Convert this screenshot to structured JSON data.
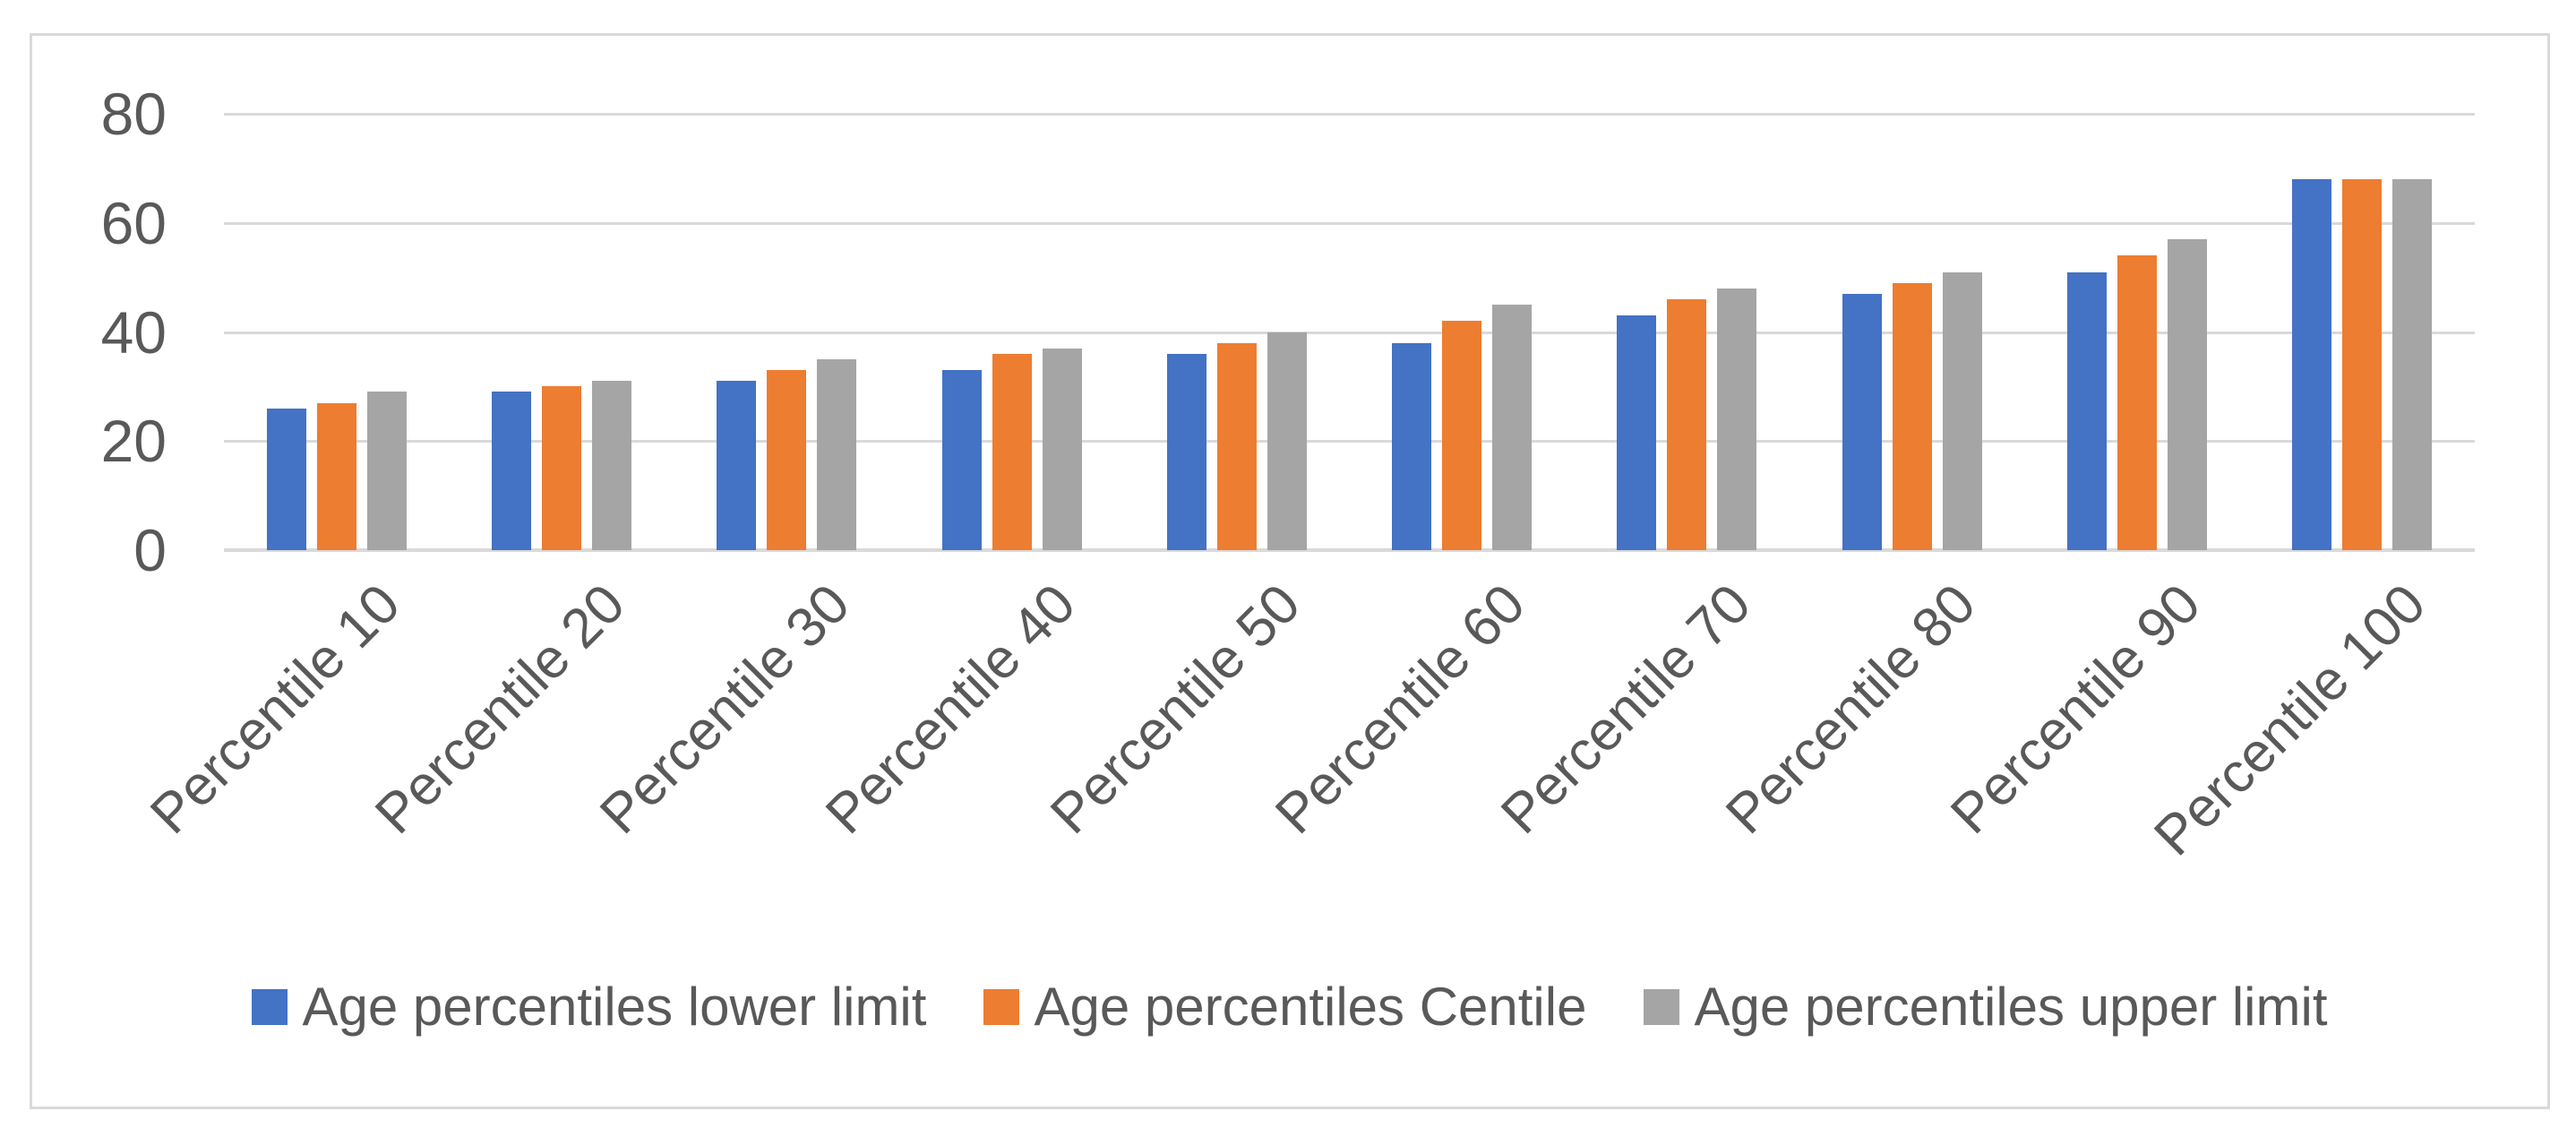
{
  "chart_data": {
    "type": "bar",
    "title": "",
    "xlabel": "",
    "ylabel": "",
    "categories": [
      "Percentile 10",
      "Percentile 20",
      "Percentile 30",
      "Percentile 40",
      "Percentile 50",
      "Percentile 60",
      "Percentile 70",
      "Percentile 80",
      "Percentile 90",
      "Percentile 100"
    ],
    "series": [
      {
        "name": "Age percentiles lower limit",
        "color": "#4472C4",
        "values": [
          26,
          29,
          31,
          33,
          36,
          38,
          43,
          47,
          51,
          68
        ]
      },
      {
        "name": "Age percentiles Centile",
        "color": "#ED7D31",
        "values": [
          27,
          30,
          33,
          36,
          38,
          42,
          46,
          49,
          54,
          68
        ]
      },
      {
        "name": "Age percentiles upper limit",
        "color": "#A5A5A5",
        "values": [
          29,
          31,
          35,
          37,
          40,
          45,
          48,
          51,
          57,
          68
        ]
      }
    ],
    "ylim": [
      0,
      80
    ],
    "yticks": [
      0,
      20,
      40,
      60,
      80
    ],
    "ytick_labels": [
      "0",
      "20",
      "40",
      "60",
      "80"
    ],
    "grid": true,
    "legend_position": "bottom",
    "category_label_rotation_deg": 45
  },
  "colors": {
    "background": "#FFFFFF",
    "frame_border": "#D9D9D9",
    "gridline": "#D9D9D9",
    "axis_line": "#D9D9D9",
    "text": "#595959"
  }
}
